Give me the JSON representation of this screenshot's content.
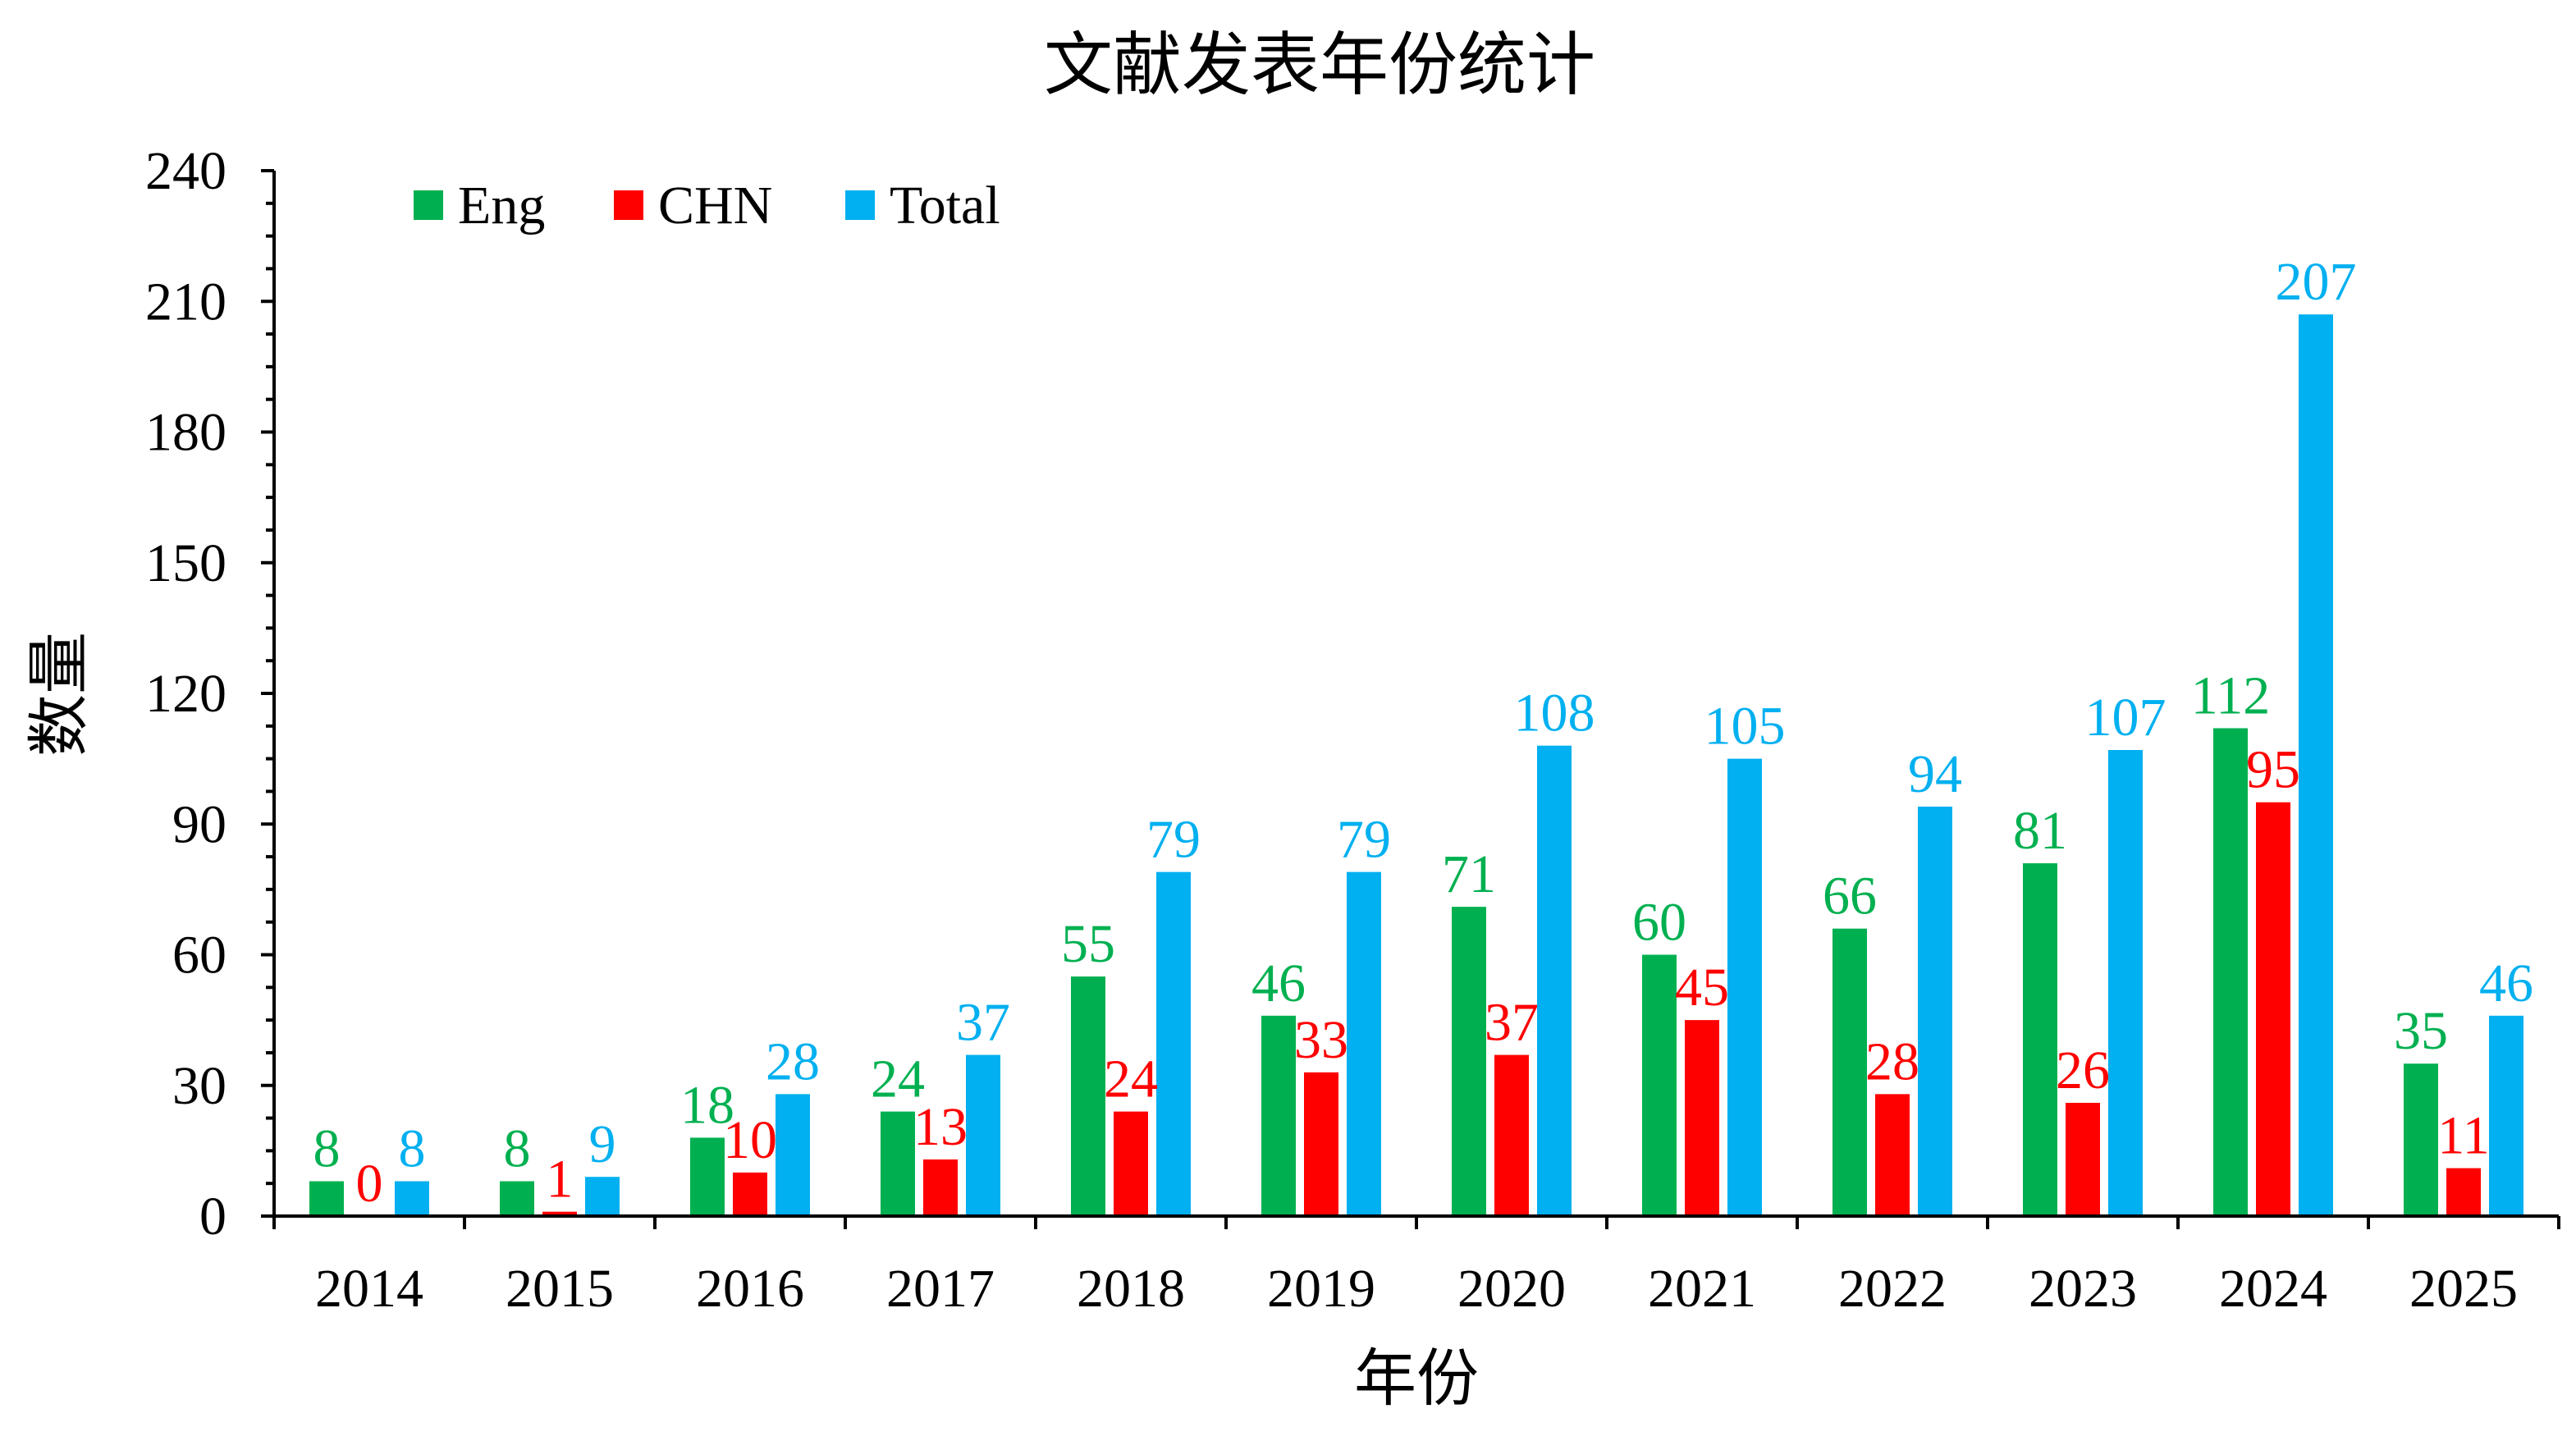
{
  "chart_data": {
    "type": "bar",
    "title": "文献发表年份统计",
    "xlabel": "年份",
    "ylabel": "数量",
    "ylim": [
      0,
      240
    ],
    "yticks": [
      0,
      30,
      60,
      90,
      120,
      150,
      180,
      210,
      240
    ],
    "grid": false,
    "legend_position": "top-left",
    "categories": [
      "2014",
      "2015",
      "2016",
      "2017",
      "2018",
      "2019",
      "2020",
      "2021",
      "2022",
      "2023",
      "2024",
      "2025"
    ],
    "series": [
      {
        "name": "Eng",
        "color": "#00B050",
        "values": [
          8,
          8,
          18,
          24,
          55,
          46,
          71,
          60,
          66,
          81,
          112,
          35
        ]
      },
      {
        "name": "CHN",
        "color": "#FF0000",
        "values": [
          0,
          1,
          10,
          13,
          24,
          33,
          37,
          45,
          28,
          26,
          95,
          11
        ]
      },
      {
        "name": "Total",
        "color": "#00B0F0",
        "values": [
          8,
          9,
          28,
          37,
          79,
          79,
          108,
          105,
          94,
          107,
          207,
          46
        ]
      }
    ]
  }
}
